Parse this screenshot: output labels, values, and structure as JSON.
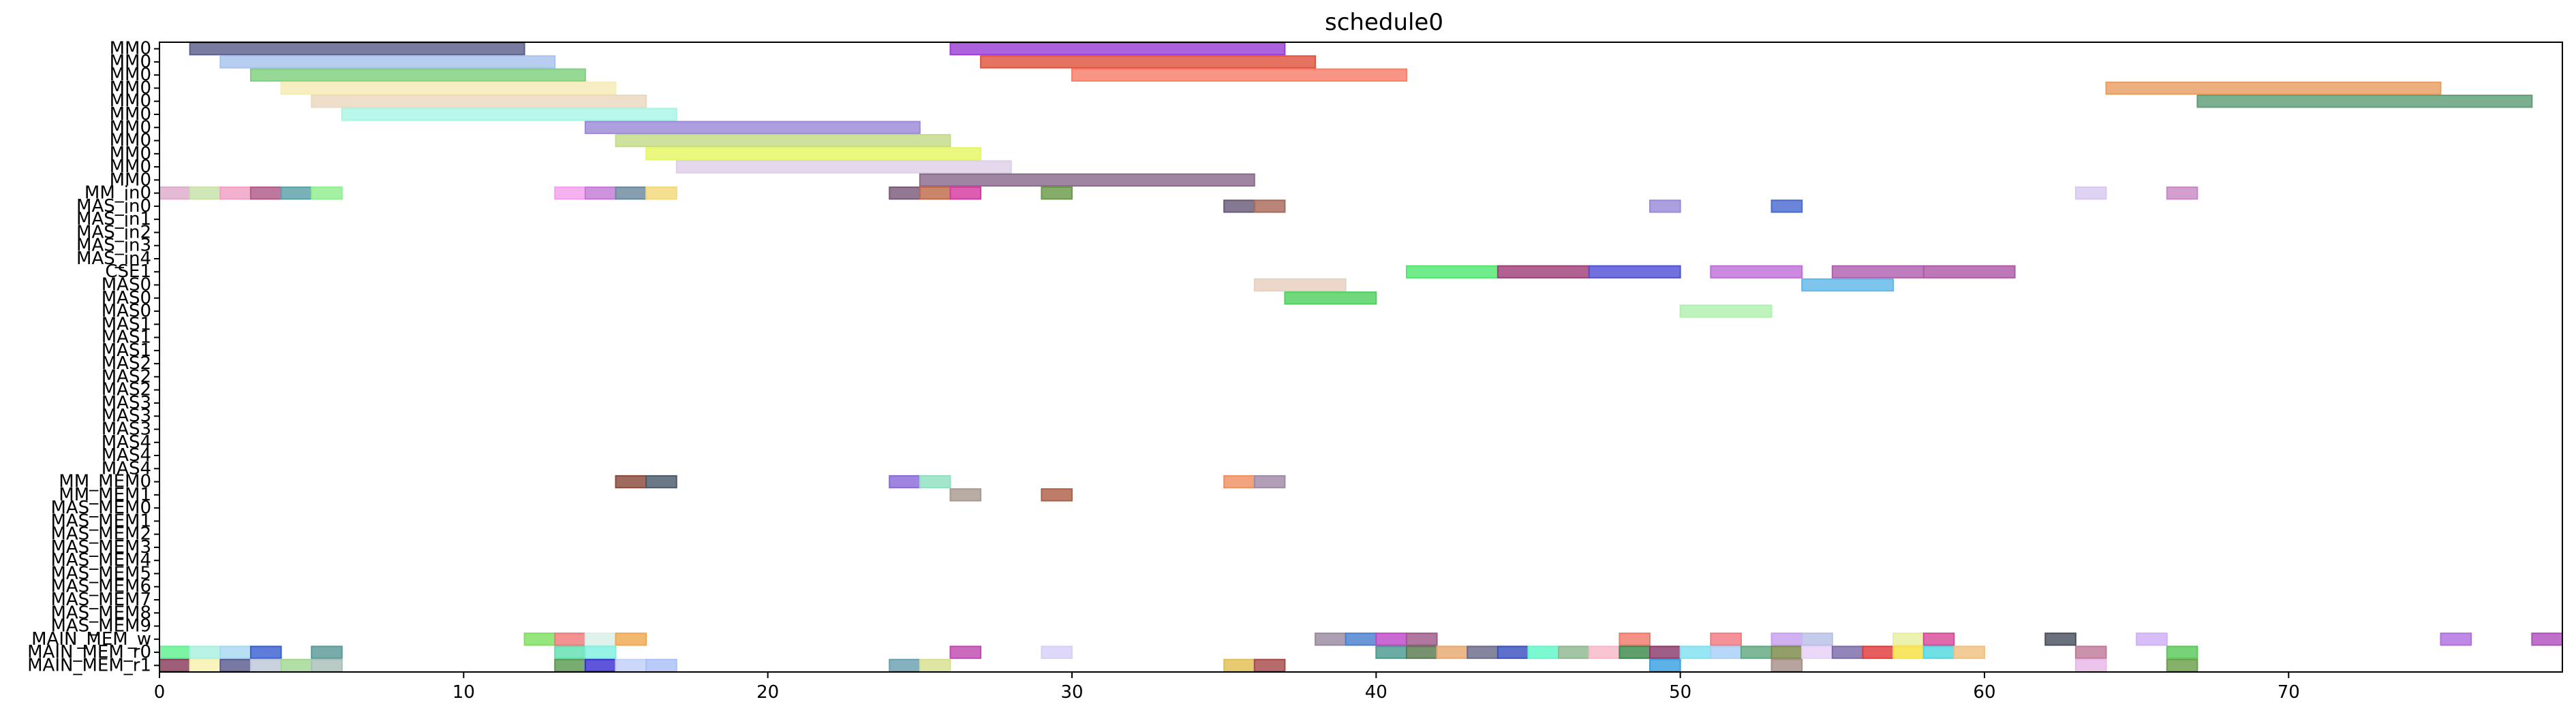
{
  "chart_data": {
    "type": "gantt",
    "title": "schedule0",
    "xlim": [
      0,
      79
    ],
    "x_ticks": [
      0,
      10,
      20,
      30,
      40,
      50,
      60,
      70
    ],
    "rows": [
      "MM0",
      "MM0",
      "MM0",
      "MM0",
      "MM0",
      "MM0",
      "MM0",
      "MM0",
      "MM0",
      "MM0",
      "MM0",
      "MM_in0",
      "MAS_in0",
      "MAS_in1",
      "MAS_in2",
      "MAS_in3",
      "MAS_in4",
      "CSE1",
      "MAS0",
      "MAS0",
      "MAS0",
      "MAS1",
      "MAS1",
      "MAS1",
      "MAS2",
      "MAS2",
      "MAS2",
      "MAS3",
      "MAS3",
      "MAS3",
      "MAS4",
      "MAS4",
      "MAS4",
      "MM_MEM0",
      "MM_MEM1",
      "MAS_MEM0",
      "MAS_MEM1",
      "MAS_MEM2",
      "MAS_MEM3",
      "MAS_MEM4",
      "MAS_MEM5",
      "MAS_MEM6",
      "MAS_MEM7",
      "MAS_MEM8",
      "MAS_MEM9",
      "MAIN_MEM_w",
      "MAIN_MEM_r0",
      "MAIN_MEM_r1"
    ],
    "bars": [
      {
        "row": 0,
        "start": 1,
        "end": 12,
        "color": "#5b5f8c"
      },
      {
        "row": 0,
        "start": 26,
        "end": 37,
        "color": "#9a3ed6"
      },
      {
        "row": 1,
        "start": 2,
        "end": 13,
        "color": "#a7c3ee"
      },
      {
        "row": 1,
        "start": 27,
        "end": 38,
        "color": "#e0533f"
      },
      {
        "row": 2,
        "start": 3,
        "end": 14,
        "color": "#7fcf7f"
      },
      {
        "row": 2,
        "start": 30,
        "end": 41,
        "color": "#f77f6a"
      },
      {
        "row": 3,
        "start": 4,
        "end": 15,
        "color": "#f5ecb6"
      },
      {
        "row": 3,
        "start": 64,
        "end": 75,
        "color": "#e89e60"
      },
      {
        "row": 4,
        "start": 5,
        "end": 16,
        "color": "#ead8bf"
      },
      {
        "row": 4,
        "start": 67,
        "end": 78,
        "color": "#5e9e78"
      },
      {
        "row": 5,
        "start": 6,
        "end": 17,
        "color": "#a8f5e4"
      },
      {
        "row": 6,
        "start": 14,
        "end": 25,
        "color": "#9b8ad8"
      },
      {
        "row": 7,
        "start": 15,
        "end": 26,
        "color": "#c4dc88"
      },
      {
        "row": 8,
        "start": 16,
        "end": 27,
        "color": "#e5f764"
      },
      {
        "row": 9,
        "start": 17,
        "end": 28,
        "color": "#ddd0e8"
      },
      {
        "row": 10,
        "start": 25,
        "end": 36,
        "color": "#8b6a8e"
      },
      {
        "row": 11,
        "start": 0,
        "end": 1,
        "color": "#deabcb"
      },
      {
        "row": 11,
        "start": 1,
        "end": 2,
        "color": "#c6e3a8"
      },
      {
        "row": 11,
        "start": 2,
        "end": 3,
        "color": "#f2a0c4"
      },
      {
        "row": 11,
        "start": 3,
        "end": 4,
        "color": "#b05a88"
      },
      {
        "row": 11,
        "start": 4,
        "end": 5,
        "color": "#5aa0a8"
      },
      {
        "row": 11,
        "start": 5,
        "end": 6,
        "color": "#90ee90"
      },
      {
        "row": 11,
        "start": 13,
        "end": 14,
        "color": "#f4a0ee"
      },
      {
        "row": 11,
        "start": 14,
        "end": 15,
        "color": "#c47ad6"
      },
      {
        "row": 11,
        "start": 15,
        "end": 16,
        "color": "#6a8aa0"
      },
      {
        "row": 11,
        "start": 16,
        "end": 17,
        "color": "#f4d87a"
      },
      {
        "row": 11,
        "start": 24,
        "end": 25,
        "color": "#7a5a7a"
      },
      {
        "row": 11,
        "start": 25,
        "end": 26,
        "color": "#c06a4a"
      },
      {
        "row": 11,
        "start": 26,
        "end": 27,
        "color": "#d43aa0"
      },
      {
        "row": 11,
        "start": 29,
        "end": 30,
        "color": "#6a9a4a"
      },
      {
        "row": 11,
        "start": 63,
        "end": 64,
        "color": "#d8c8f0"
      },
      {
        "row": 11,
        "start": 66,
        "end": 67,
        "color": "#c88ac4"
      },
      {
        "row": 12,
        "start": 35,
        "end": 36,
        "color": "#6a5a7a"
      },
      {
        "row": 12,
        "start": 36,
        "end": 37,
        "color": "#a86a5a"
      },
      {
        "row": 12,
        "start": 49,
        "end": 50,
        "color": "#9a8ad8"
      },
      {
        "row": 12,
        "start": 53,
        "end": 54,
        "color": "#4a6ad0"
      },
      {
        "row": 17,
        "start": 41,
        "end": 44,
        "color": "#50e870"
      },
      {
        "row": 17,
        "start": 44,
        "end": 47,
        "color": "#a0407a"
      },
      {
        "row": 17,
        "start": 47,
        "end": 50,
        "color": "#5050d8"
      },
      {
        "row": 17,
        "start": 51,
        "end": 54,
        "color": "#c070d8"
      },
      {
        "row": 17,
        "start": 55,
        "end": 58,
        "color": "#b060b0"
      },
      {
        "row": 17,
        "start": 58,
        "end": 61,
        "color": "#b05aa8"
      },
      {
        "row": 18,
        "start": 36,
        "end": 39,
        "color": "#e8d0c0"
      },
      {
        "row": 18,
        "start": 54,
        "end": 57,
        "color": "#60b8e8"
      },
      {
        "row": 19,
        "start": 37,
        "end": 40,
        "color": "#50d060"
      },
      {
        "row": 20,
        "start": 50,
        "end": 53,
        "color": "#b0f0b0"
      },
      {
        "row": 33,
        "start": 15,
        "end": 16,
        "color": "#8a4a3a"
      },
      {
        "row": 33,
        "start": 16,
        "end": 17,
        "color": "#4a5a6a"
      },
      {
        "row": 33,
        "start": 24,
        "end": 25,
        "color": "#8a6ad8"
      },
      {
        "row": 33,
        "start": 25,
        "end": 26,
        "color": "#90e0c0"
      },
      {
        "row": 33,
        "start": 35,
        "end": 36,
        "color": "#f09060"
      },
      {
        "row": 33,
        "start": 36,
        "end": 37,
        "color": "#a08aa8"
      },
      {
        "row": 34,
        "start": 26,
        "end": 27,
        "color": "#a89a90"
      },
      {
        "row": 34,
        "start": 29,
        "end": 30,
        "color": "#b06048"
      },
      {
        "row": 45,
        "start": 12,
        "end": 13,
        "color": "#80e060"
      },
      {
        "row": 45,
        "start": 13,
        "end": 14,
        "color": "#f07a7a"
      },
      {
        "row": 45,
        "start": 14,
        "end": 15,
        "color": "#d8f0e8"
      },
      {
        "row": 45,
        "start": 15,
        "end": 16,
        "color": "#f0a850"
      },
      {
        "row": 45,
        "start": 38,
        "end": 39,
        "color": "#9a8aa0"
      },
      {
        "row": 45,
        "start": 39,
        "end": 40,
        "color": "#4a80d0"
      },
      {
        "row": 45,
        "start": 40,
        "end": 41,
        "color": "#c048c8"
      },
      {
        "row": 45,
        "start": 41,
        "end": 42,
        "color": "#a05a8a"
      },
      {
        "row": 45,
        "start": 48,
        "end": 49,
        "color": "#f07a6a"
      },
      {
        "row": 45,
        "start": 51,
        "end": 52,
        "color": "#f07a80"
      },
      {
        "row": 45,
        "start": 53,
        "end": 54,
        "color": "#c8a0f0"
      },
      {
        "row": 45,
        "start": 54,
        "end": 55,
        "color": "#b8c0e8"
      },
      {
        "row": 45,
        "start": 57,
        "end": 58,
        "color": "#e8f0a0"
      },
      {
        "row": 45,
        "start": 58,
        "end": 59,
        "color": "#d84a9a"
      },
      {
        "row": 45,
        "start": 62,
        "end": 63,
        "color": "#4a5060"
      },
      {
        "row": 45,
        "start": 65,
        "end": 66,
        "color": "#d0b0f8"
      },
      {
        "row": 45,
        "start": 75,
        "end": 76,
        "color": "#b070e0"
      },
      {
        "row": 45,
        "start": 78,
        "end": 79,
        "color": "#b050c0"
      },
      {
        "row": 46,
        "start": 0,
        "end": 1,
        "color": "#60f090"
      },
      {
        "row": 46,
        "start": 1,
        "end": 2,
        "color": "#a8f0e0"
      },
      {
        "row": 46,
        "start": 2,
        "end": 3,
        "color": "#a8d8f0"
      },
      {
        "row": 46,
        "start": 3,
        "end": 4,
        "color": "#3a60d0"
      },
      {
        "row": 46,
        "start": 5,
        "end": 6,
        "color": "#5a9a98"
      },
      {
        "row": 46,
        "start": 13,
        "end": 14,
        "color": "#60e0b0"
      },
      {
        "row": 46,
        "start": 14,
        "end": 15,
        "color": "#80f0e0"
      },
      {
        "row": 46,
        "start": 26,
        "end": 27,
        "color": "#c04ab0"
      },
      {
        "row": 46,
        "start": 29,
        "end": 30,
        "color": "#d8d0f8"
      },
      {
        "row": 46,
        "start": 40,
        "end": 41,
        "color": "#4a9a90"
      },
      {
        "row": 46,
        "start": 41,
        "end": 42,
        "color": "#5a7a50"
      },
      {
        "row": 46,
        "start": 42,
        "end": 43,
        "color": "#e8a870"
      },
      {
        "row": 46,
        "start": 43,
        "end": 44,
        "color": "#6a6a8a"
      },
      {
        "row": 46,
        "start": 44,
        "end": 45,
        "color": "#3a50c0"
      },
      {
        "row": 46,
        "start": 45,
        "end": 46,
        "color": "#60f8c8"
      },
      {
        "row": 46,
        "start": 46,
        "end": 47,
        "color": "#90b890"
      },
      {
        "row": 46,
        "start": 47,
        "end": 48,
        "color": "#f8b8c8"
      },
      {
        "row": 46,
        "start": 48,
        "end": 49,
        "color": "#3a8a4a"
      },
      {
        "row": 46,
        "start": 49,
        "end": 50,
        "color": "#8a3a6a"
      },
      {
        "row": 46,
        "start": 50,
        "end": 51,
        "color": "#80e0f0"
      },
      {
        "row": 46,
        "start": 51,
        "end": 52,
        "color": "#a8d0f8"
      },
      {
        "row": 46,
        "start": 52,
        "end": 53,
        "color": "#60a880"
      },
      {
        "row": 46,
        "start": 53,
        "end": 54,
        "color": "#7a8a4a"
      },
      {
        "row": 46,
        "start": 54,
        "end": 55,
        "color": "#e8d0f8"
      },
      {
        "row": 46,
        "start": 55,
        "end": 56,
        "color": "#7a6aa8"
      },
      {
        "row": 46,
        "start": 56,
        "end": 57,
        "color": "#e03a3a"
      },
      {
        "row": 46,
        "start": 57,
        "end": 58,
        "color": "#f8e040"
      },
      {
        "row": 46,
        "start": 58,
        "end": 59,
        "color": "#50d8e0"
      },
      {
        "row": 46,
        "start": 59,
        "end": 60,
        "color": "#f0c080"
      },
      {
        "row": 46,
        "start": 63,
        "end": 64,
        "color": "#c07a9a"
      },
      {
        "row": 46,
        "start": 66,
        "end": 67,
        "color": "#5ac85a"
      },
      {
        "row": 47,
        "start": 0,
        "end": 1,
        "color": "#8a3a5a"
      },
      {
        "row": 47,
        "start": 1,
        "end": 2,
        "color": "#f8f0b0"
      },
      {
        "row": 47,
        "start": 2,
        "end": 3,
        "color": "#5a5a90"
      },
      {
        "row": 47,
        "start": 3,
        "end": 4,
        "color": "#c0c8d8"
      },
      {
        "row": 47,
        "start": 4,
        "end": 5,
        "color": "#a0d890"
      },
      {
        "row": 47,
        "start": 5,
        "end": 6,
        "color": "#a8c0b8"
      },
      {
        "row": 47,
        "start": 13,
        "end": 14,
        "color": "#5a9a50"
      },
      {
        "row": 47,
        "start": 14,
        "end": 15,
        "color": "#3a30d0"
      },
      {
        "row": 47,
        "start": 15,
        "end": 16,
        "color": "#c0d0f8"
      },
      {
        "row": 47,
        "start": 16,
        "end": 17,
        "color": "#a8c0f8"
      },
      {
        "row": 47,
        "start": 24,
        "end": 25,
        "color": "#6aa0b0"
      },
      {
        "row": 47,
        "start": 25,
        "end": 26,
        "color": "#d8e090"
      },
      {
        "row": 47,
        "start": 35,
        "end": 36,
        "color": "#e0c050"
      },
      {
        "row": 47,
        "start": 36,
        "end": 37,
        "color": "#a84a4a"
      },
      {
        "row": 47,
        "start": 49,
        "end": 50,
        "color": "#3aa0e0"
      },
      {
        "row": 47,
        "start": 53,
        "end": 54,
        "color": "#a8908a"
      },
      {
        "row": 47,
        "start": 63,
        "end": 64,
        "color": "#e8b8e8"
      },
      {
        "row": 47,
        "start": 66,
        "end": 67,
        "color": "#6aa04a"
      }
    ]
  }
}
